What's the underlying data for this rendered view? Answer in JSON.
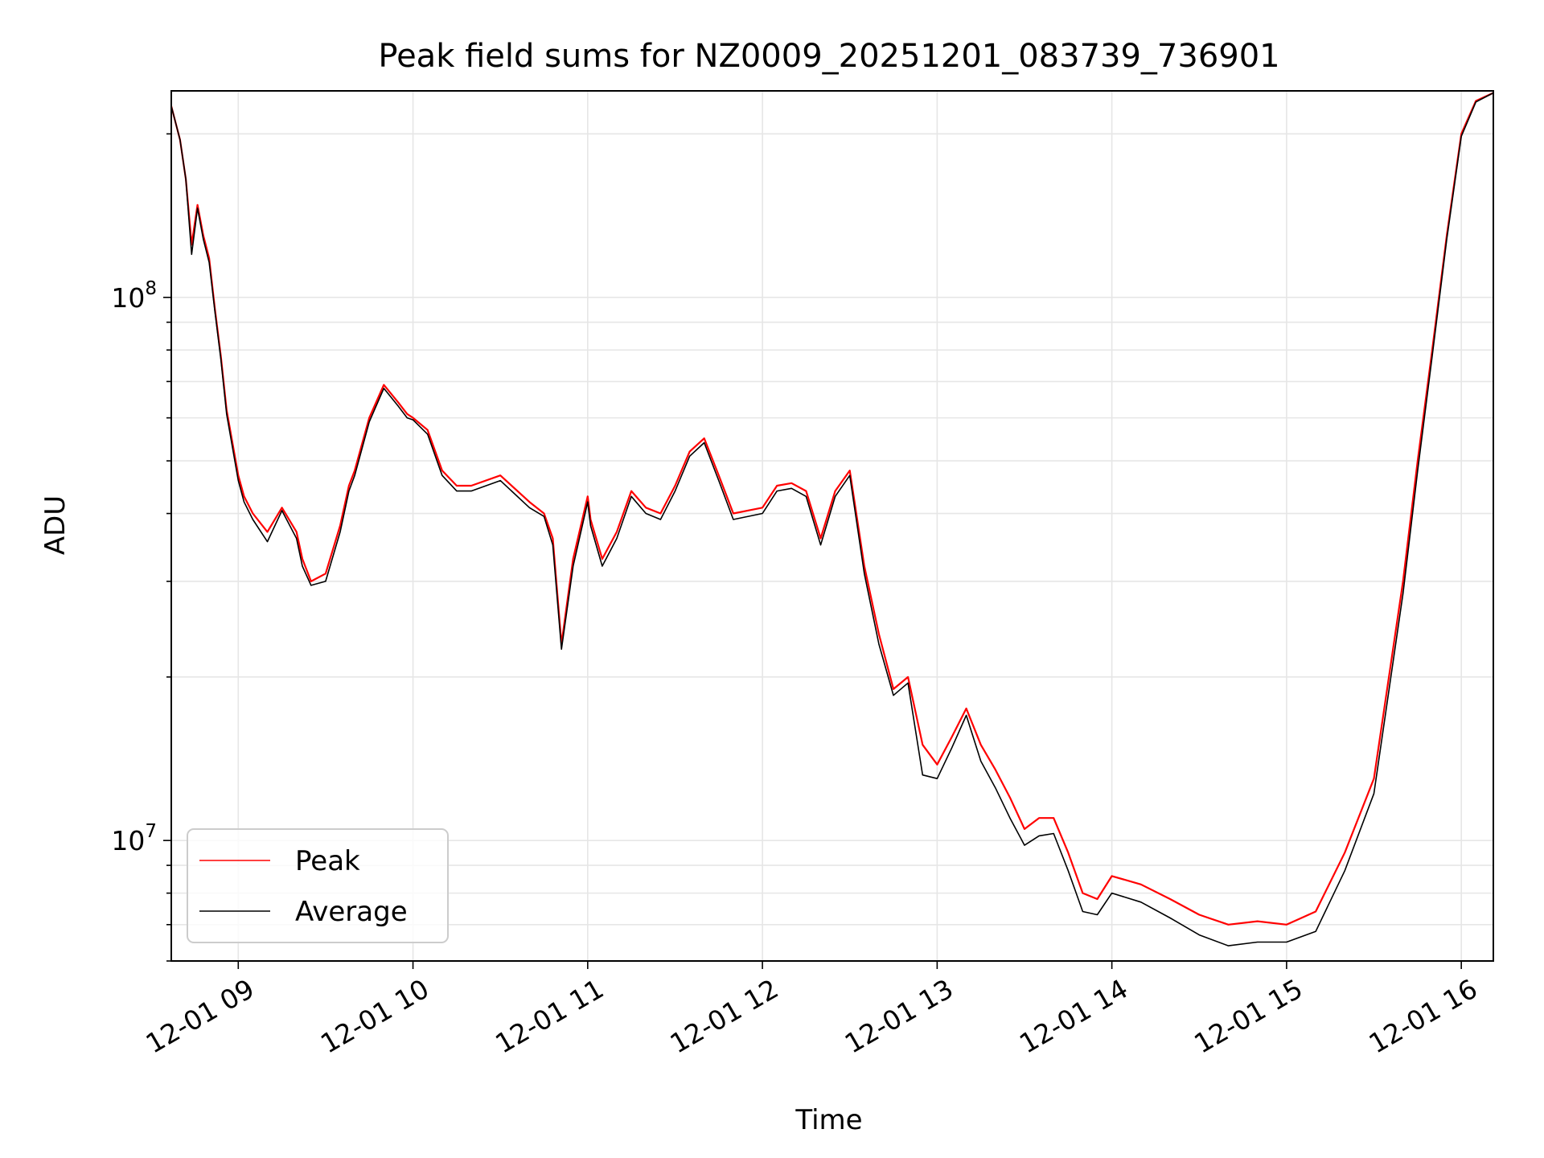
{
  "chart_data": {
    "type": "line",
    "title": "Peak field sums for NZ0009_20251201_083739_736901",
    "xlabel": "Time",
    "ylabel": "ADU",
    "yscale": "log",
    "xlim": [
      "2025-12-01 08:37",
      "2025-12-01 16:11"
    ],
    "ylim": [
      6000000,
      240000000
    ],
    "grid": true,
    "legend": "lower-left",
    "x_ticks": [
      {
        "value": "2025-12-01 09:00",
        "label": "12-01 09"
      },
      {
        "value": "2025-12-01 10:00",
        "label": "12-01 10"
      },
      {
        "value": "2025-12-01 11:00",
        "label": "12-01 11"
      },
      {
        "value": "2025-12-01 12:00",
        "label": "12-01 12"
      },
      {
        "value": "2025-12-01 13:00",
        "label": "12-01 13"
      },
      {
        "value": "2025-12-01 14:00",
        "label": "12-01 14"
      },
      {
        "value": "2025-12-01 15:00",
        "label": "12-01 15"
      },
      {
        "value": "2025-12-01 16:00",
        "label": "12-01 16"
      }
    ],
    "y_ticks": [
      {
        "value": 10000000,
        "base": "10",
        "exp": "7"
      },
      {
        "value": 100000000,
        "base": "10",
        "exp": "8"
      }
    ],
    "x": [
      "2025-12-01 08:37",
      "2025-12-01 08:40",
      "2025-12-01 08:42",
      "2025-12-01 08:44",
      "2025-12-01 08:46",
      "2025-12-01 08:48",
      "2025-12-01 08:50",
      "2025-12-01 08:52",
      "2025-12-01 08:54",
      "2025-12-01 08:56",
      "2025-12-01 09:00",
      "2025-12-01 09:02",
      "2025-12-01 09:05",
      "2025-12-01 09:10",
      "2025-12-01 09:15",
      "2025-12-01 09:20",
      "2025-12-01 09:22",
      "2025-12-01 09:25",
      "2025-12-01 09:30",
      "2025-12-01 09:35",
      "2025-12-01 09:38",
      "2025-12-01 09:40",
      "2025-12-01 09:45",
      "2025-12-01 09:50",
      "2025-12-01 09:55",
      "2025-12-01 09:58",
      "2025-12-01 10:00",
      "2025-12-01 10:05",
      "2025-12-01 10:10",
      "2025-12-01 10:15",
      "2025-12-01 10:20",
      "2025-12-01 10:30",
      "2025-12-01 10:40",
      "2025-12-01 10:45",
      "2025-12-01 10:48",
      "2025-12-01 10:51",
      "2025-12-01 10:55",
      "2025-12-01 11:00",
      "2025-12-01 11:01",
      "2025-12-01 11:05",
      "2025-12-01 11:10",
      "2025-12-01 11:15",
      "2025-12-01 11:20",
      "2025-12-01 11:25",
      "2025-12-01 11:30",
      "2025-12-01 11:35",
      "2025-12-01 11:40",
      "2025-12-01 11:45",
      "2025-12-01 11:50",
      "2025-12-01 12:00",
      "2025-12-01 12:05",
      "2025-12-01 12:10",
      "2025-12-01 12:15",
      "2025-12-01 12:20",
      "2025-12-01 12:25",
      "2025-12-01 12:30",
      "2025-12-01 12:35",
      "2025-12-01 12:40",
      "2025-12-01 12:45",
      "2025-12-01 12:50",
      "2025-12-01 12:55",
      "2025-12-01 13:00",
      "2025-12-01 13:05",
      "2025-12-01 13:10",
      "2025-12-01 13:15",
      "2025-12-01 13:20",
      "2025-12-01 13:25",
      "2025-12-01 13:30",
      "2025-12-01 13:35",
      "2025-12-01 13:40",
      "2025-12-01 13:45",
      "2025-12-01 13:50",
      "2025-12-01 13:55",
      "2025-12-01 14:00",
      "2025-12-01 14:10",
      "2025-12-01 14:20",
      "2025-12-01 14:30",
      "2025-12-01 14:40",
      "2025-12-01 14:50",
      "2025-12-01 15:00",
      "2025-12-01 15:10",
      "2025-12-01 15:20",
      "2025-12-01 15:30",
      "2025-12-01 15:40",
      "2025-12-01 15:45",
      "2025-12-01 15:50",
      "2025-12-01 15:55",
      "2025-12-01 16:00",
      "2025-12-01 16:05",
      "2025-12-01 16:11"
    ],
    "series": [
      {
        "name": "Peak",
        "color": "#ff0000",
        "values": [
          225000000,
          195000000,
          165000000,
          125000000,
          148000000,
          130000000,
          118000000,
          95000000,
          78000000,
          62000000,
          47000000,
          43000000,
          40000000,
          37000000,
          41000000,
          37000000,
          33000000,
          30000000,
          31000000,
          38000000,
          45000000,
          48000000,
          60000000,
          69000000,
          64000000,
          61000000,
          60000000,
          57000000,
          48000000,
          45000000,
          45000000,
          47000000,
          42000000,
          40000000,
          36000000,
          23000000,
          33000000,
          43000000,
          39000000,
          33000000,
          37000000,
          44000000,
          41000000,
          40000000,
          45000000,
          52000000,
          55000000,
          47000000,
          40000000,
          41000000,
          45000000,
          45500000,
          44000000,
          36000000,
          44000000,
          48000000,
          32000000,
          24000000,
          19000000,
          20000000,
          15000000,
          13800000,
          15500000,
          17500000,
          15000000,
          13500000,
          12000000,
          10500000,
          11000000,
          11000000,
          9500000,
          8000000,
          7800000,
          8600000,
          8300000,
          7800000,
          7300000,
          7000000,
          7100000,
          7000000,
          7400000,
          9500000,
          13000000,
          30000000,
          50000000,
          80000000,
          130000000,
          200000000,
          230000000,
          238000000
        ]
      },
      {
        "name": "Average",
        "color": "#000000",
        "values": [
          225000000,
          195000000,
          165000000,
          120000000,
          146000000,
          128000000,
          116000000,
          94000000,
          77000000,
          61000000,
          46000000,
          42000000,
          39000000,
          35500000,
          40500000,
          36000000,
          32000000,
          29500000,
          30000000,
          37000000,
          44000000,
          47000000,
          59000000,
          68000000,
          63000000,
          60000000,
          59500000,
          56000000,
          47000000,
          44000000,
          44000000,
          46000000,
          41000000,
          39500000,
          35000000,
          22500000,
          32000000,
          42000000,
          38000000,
          32000000,
          36000000,
          43000000,
          40000000,
          39000000,
          44000000,
          51000000,
          54000000,
          46000000,
          39000000,
          40000000,
          44000000,
          44500000,
          43000000,
          35000000,
          43000000,
          47000000,
          31000000,
          23000000,
          18500000,
          19500000,
          13200000,
          13000000,
          14800000,
          17000000,
          14000000,
          12500000,
          11000000,
          9800000,
          10200000,
          10300000,
          8800000,
          7400000,
          7300000,
          8000000,
          7700000,
          7200000,
          6700000,
          6400000,
          6500000,
          6500000,
          6800000,
          8800000,
          12200000,
          28500000,
          48000000,
          78000000,
          128000000,
          198000000,
          229000000,
          238000000
        ]
      }
    ]
  }
}
